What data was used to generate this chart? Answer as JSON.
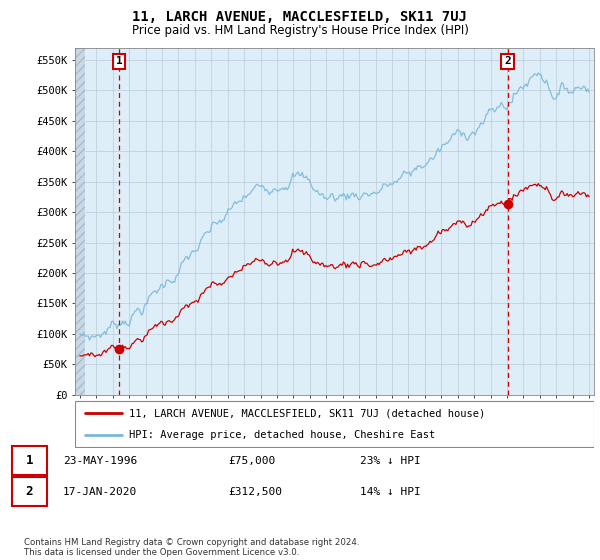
{
  "title": "11, LARCH AVENUE, MACCLESFIELD, SK11 7UJ",
  "subtitle": "Price paid vs. HM Land Registry's House Price Index (HPI)",
  "ylabel_ticks": [
    "£0",
    "£50K",
    "£100K",
    "£150K",
    "£200K",
    "£250K",
    "£300K",
    "£350K",
    "£400K",
    "£450K",
    "£500K",
    "£550K"
  ],
  "ytick_vals": [
    0,
    50000,
    100000,
    150000,
    200000,
    250000,
    300000,
    350000,
    400000,
    450000,
    500000,
    550000
  ],
  "xlim_left": 1993.7,
  "xlim_right": 2025.3,
  "ylim": [
    0,
    570000
  ],
  "sale1_date": 1996.38,
  "sale1_price": 75000,
  "sale2_date": 2020.04,
  "sale2_price": 312500,
  "sale1_label": "1",
  "sale2_label": "2",
  "sale1_date_str": "23-MAY-1996",
  "sale1_price_str": "£75,000",
  "sale1_pct_str": "23% ↓ HPI",
  "sale2_date_str": "17-JAN-2020",
  "sale2_price_str": "£312,500",
  "sale2_pct_str": "14% ↓ HPI",
  "legend_label_red": "11, LARCH AVENUE, MACCLESFIELD, SK11 7UJ (detached house)",
  "legend_label_blue": "HPI: Average price, detached house, Cheshire East",
  "footer": "Contains HM Land Registry data © Crown copyright and database right 2024.\nThis data is licensed under the Open Government Licence v3.0.",
  "hpi_color": "#7ab8d9",
  "sale_color": "#cc0000",
  "bg_color": "#ddeef8",
  "hatch_color": "#c8d8e4",
  "grid_color": "#b8ccd8"
}
